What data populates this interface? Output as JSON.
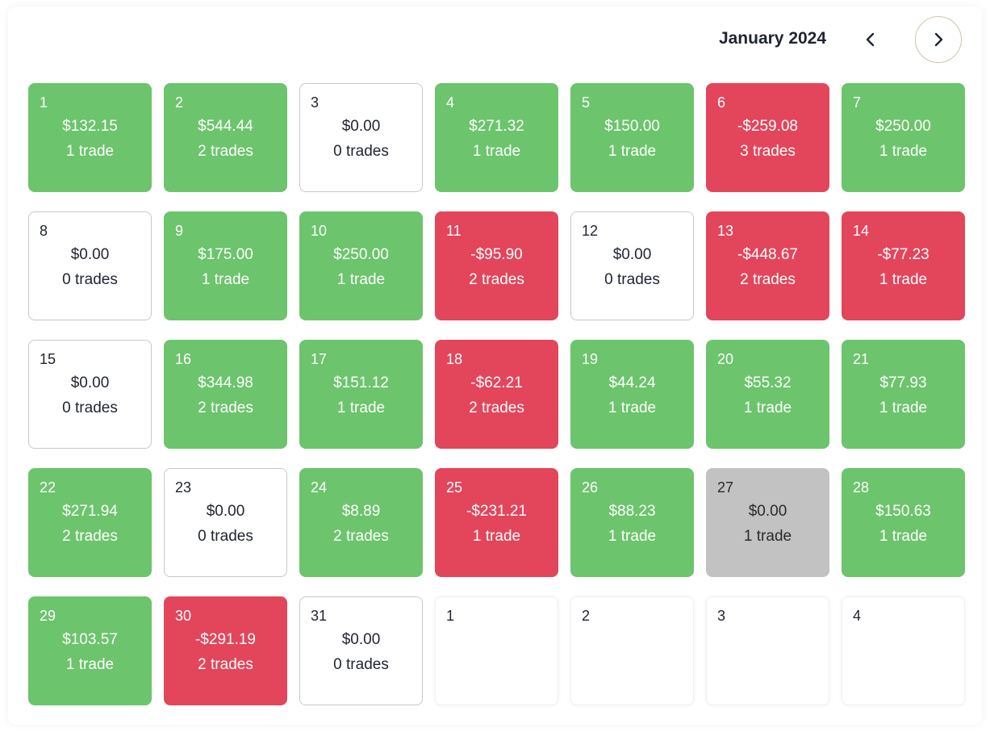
{
  "header": {
    "month_label": "January 2024",
    "prev_icon": "chevron-left-icon",
    "next_icon": "chevron-right-icon"
  },
  "colors": {
    "profit": "#6cc46c",
    "loss": "#e3455b",
    "neutral": "#c2c2c2",
    "next_button_border": "#cfc4a6"
  },
  "days": [
    {
      "day": "1",
      "pnl": "$132.15",
      "trades": "1 trade",
      "status": "profit"
    },
    {
      "day": "2",
      "pnl": "$544.44",
      "trades": "2 trades",
      "status": "profit"
    },
    {
      "day": "3",
      "pnl": "$0.00",
      "trades": "0 trades",
      "status": "zero"
    },
    {
      "day": "4",
      "pnl": "$271.32",
      "trades": "1 trade",
      "status": "profit"
    },
    {
      "day": "5",
      "pnl": "$150.00",
      "trades": "1 trade",
      "status": "profit"
    },
    {
      "day": "6",
      "pnl": "-$259.08",
      "trades": "3 trades",
      "status": "loss"
    },
    {
      "day": "7",
      "pnl": "$250.00",
      "trades": "1 trade",
      "status": "profit"
    },
    {
      "day": "8",
      "pnl": "$0.00",
      "trades": "0 trades",
      "status": "zero"
    },
    {
      "day": "9",
      "pnl": "$175.00",
      "trades": "1 trade",
      "status": "profit"
    },
    {
      "day": "10",
      "pnl": "$250.00",
      "trades": "1 trade",
      "status": "profit"
    },
    {
      "day": "11",
      "pnl": "-$95.90",
      "trades": "2 trades",
      "status": "loss"
    },
    {
      "day": "12",
      "pnl": "$0.00",
      "trades": "0 trades",
      "status": "zero"
    },
    {
      "day": "13",
      "pnl": "-$448.67",
      "trades": "2 trades",
      "status": "loss"
    },
    {
      "day": "14",
      "pnl": "-$77.23",
      "trades": "1 trade",
      "status": "loss"
    },
    {
      "day": "15",
      "pnl": "$0.00",
      "trades": "0 trades",
      "status": "zero"
    },
    {
      "day": "16",
      "pnl": "$344.98",
      "trades": "2 trades",
      "status": "profit"
    },
    {
      "day": "17",
      "pnl": "$151.12",
      "trades": "1 trade",
      "status": "profit"
    },
    {
      "day": "18",
      "pnl": "-$62.21",
      "trades": "2 trades",
      "status": "loss"
    },
    {
      "day": "19",
      "pnl": "$44.24",
      "trades": "1 trade",
      "status": "profit"
    },
    {
      "day": "20",
      "pnl": "$55.32",
      "trades": "1 trade",
      "status": "profit"
    },
    {
      "day": "21",
      "pnl": "$77.93",
      "trades": "1 trade",
      "status": "profit"
    },
    {
      "day": "22",
      "pnl": "$271.94",
      "trades": "2 trades",
      "status": "profit"
    },
    {
      "day": "23",
      "pnl": "$0.00",
      "trades": "0 trades",
      "status": "zero"
    },
    {
      "day": "24",
      "pnl": "$8.89",
      "trades": "2 trades",
      "status": "profit"
    },
    {
      "day": "25",
      "pnl": "-$231.21",
      "trades": "1 trade",
      "status": "loss"
    },
    {
      "day": "26",
      "pnl": "$88.23",
      "trades": "1 trade",
      "status": "profit"
    },
    {
      "day": "27",
      "pnl": "$0.00",
      "trades": "1 trade",
      "status": "neutral"
    },
    {
      "day": "28",
      "pnl": "$150.63",
      "trades": "1 trade",
      "status": "profit"
    },
    {
      "day": "29",
      "pnl": "$103.57",
      "trades": "1 trade",
      "status": "profit"
    },
    {
      "day": "30",
      "pnl": "-$291.19",
      "trades": "2 trades",
      "status": "loss"
    },
    {
      "day": "31",
      "pnl": "$0.00",
      "trades": "0 trades",
      "status": "zero"
    },
    {
      "day": "1",
      "pnl": "",
      "trades": "",
      "status": "other"
    },
    {
      "day": "2",
      "pnl": "",
      "trades": "",
      "status": "other"
    },
    {
      "day": "3",
      "pnl": "",
      "trades": "",
      "status": "other"
    },
    {
      "day": "4",
      "pnl": "",
      "trades": "",
      "status": "other"
    }
  ]
}
